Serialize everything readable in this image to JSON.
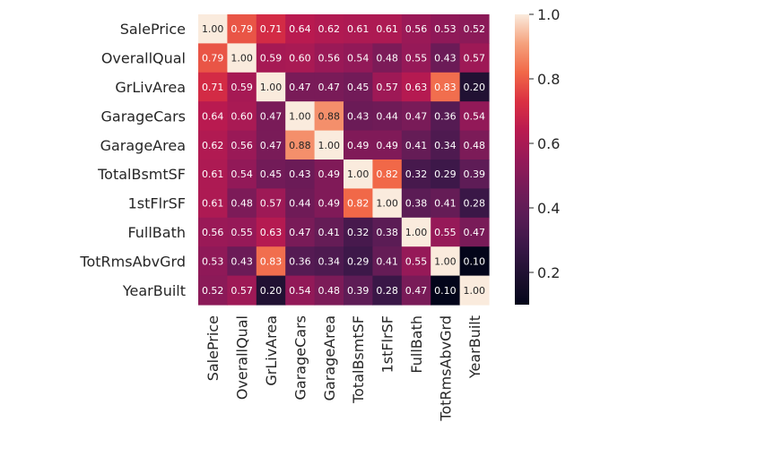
{
  "chart_data": {
    "type": "heatmap",
    "title": "",
    "xlabel": "",
    "ylabel": "",
    "row_labels": [
      "SalePrice",
      "OverallQual",
      "GrLivArea",
      "GarageCars",
      "GarageArea",
      "TotalBsmtSF",
      "1stFlrSF",
      "FullBath",
      "TotRmsAbvGrd",
      "YearBuilt"
    ],
    "col_labels": [
      "SalePrice",
      "OverallQual",
      "GrLivArea",
      "GarageCars",
      "GarageArea",
      "TotalBsmtSF",
      "1stFlrSF",
      "FullBath",
      "TotRmsAbvGrd",
      "YearBuilt"
    ],
    "values": [
      [
        1.0,
        0.79,
        0.71,
        0.64,
        0.62,
        0.61,
        0.61,
        0.56,
        0.53,
        0.52
      ],
      [
        0.79,
        1.0,
        0.59,
        0.6,
        0.56,
        0.54,
        0.48,
        0.55,
        0.43,
        0.57
      ],
      [
        0.71,
        0.59,
        1.0,
        0.47,
        0.47,
        0.45,
        0.57,
        0.63,
        0.83,
        0.2
      ],
      [
        0.64,
        0.6,
        0.47,
        1.0,
        0.88,
        0.43,
        0.44,
        0.47,
        0.36,
        0.54
      ],
      [
        0.62,
        0.56,
        0.47,
        0.88,
        1.0,
        0.49,
        0.49,
        0.41,
        0.34,
        0.48
      ],
      [
        0.61,
        0.54,
        0.45,
        0.43,
        0.49,
        1.0,
        0.82,
        0.32,
        0.29,
        0.39
      ],
      [
        0.61,
        0.48,
        0.57,
        0.44,
        0.49,
        0.82,
        1.0,
        0.38,
        0.41,
        0.28
      ],
      [
        0.56,
        0.55,
        0.63,
        0.47,
        0.41,
        0.32,
        0.38,
        1.0,
        0.55,
        0.47
      ],
      [
        0.53,
        0.43,
        0.83,
        0.36,
        0.34,
        0.29,
        0.41,
        0.55,
        1.0,
        0.1
      ],
      [
        0.52,
        0.57,
        0.2,
        0.54,
        0.48,
        0.39,
        0.28,
        0.47,
        0.1,
        1.0
      ]
    ],
    "annotation_format": "0.00",
    "colormap": "rocket",
    "color_range": [
      0.1,
      1.0
    ],
    "colorbar": {
      "ticks": [
        0.2,
        0.4,
        0.6,
        0.8,
        1.0
      ],
      "tick_labels": [
        "0.2",
        "0.4",
        "0.6",
        "0.8",
        "1.0"
      ]
    }
  }
}
